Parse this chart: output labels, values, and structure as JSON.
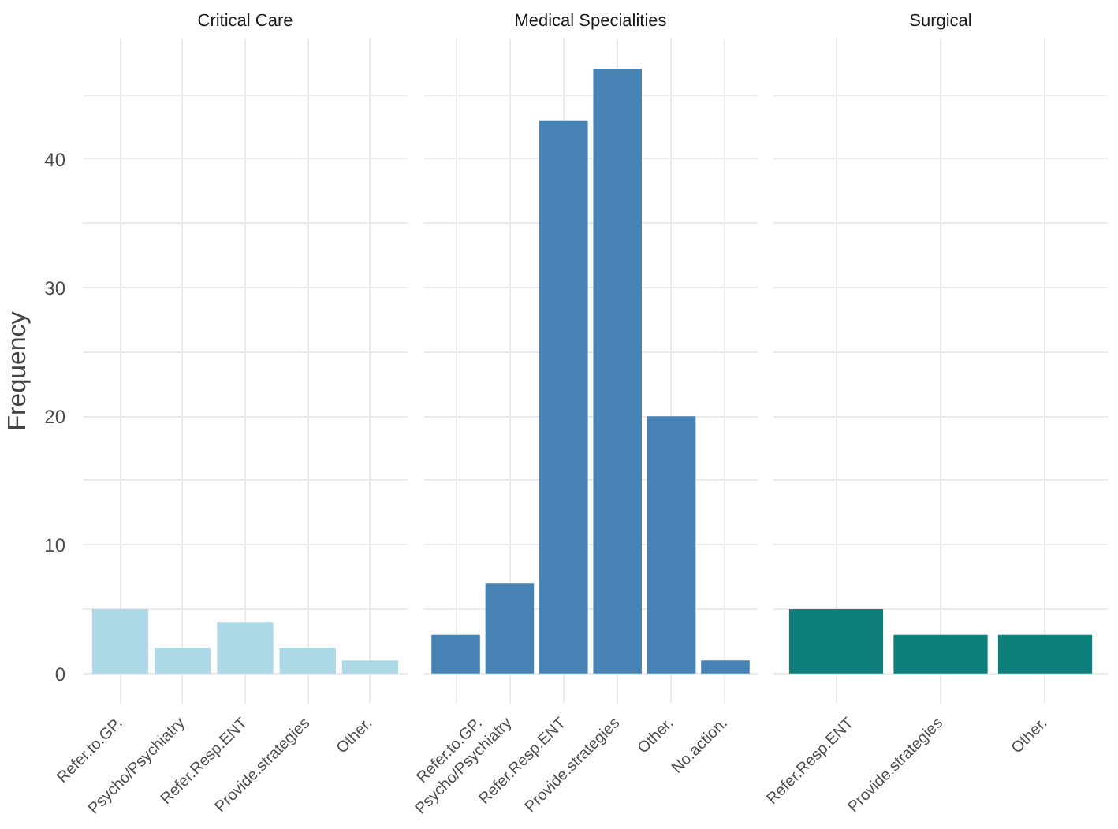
{
  "chart_data": [
    {
      "type": "bar",
      "title": "Critical Care",
      "ylabel": "Frequency",
      "categories": [
        "Refer.to.GP.",
        "Psycho/Psychiatry",
        "Refer.Resp.ENT",
        "Provide.strategies",
        "Other."
      ],
      "values": [
        5,
        2,
        4,
        2,
        1
      ],
      "color": "#add8e6",
      "ylim": [
        -2.35,
        49.35
      ],
      "yticks": [
        0,
        {
          "value": 5,
          "label": null
        },
        10,
        {
          "value": 15,
          "label": null
        },
        20,
        {
          "value": 25,
          "label": null
        },
        30,
        {
          "value": 35,
          "label": null
        },
        40,
        {
          "value": 45,
          "label": null
        }
      ],
      "grid": true
    },
    {
      "type": "bar",
      "title": "Medical Specialities",
      "categories": [
        "Refer.to.GP.",
        "Psycho/Psychiatry",
        "Refer.Resp.ENT",
        "Provide.strategies",
        "Other.",
        "No.action."
      ],
      "values": [
        3,
        7,
        43,
        47,
        20,
        1
      ],
      "color": "#4682b4",
      "ylim": [
        -2.35,
        49.35
      ],
      "yticks": [
        0,
        {
          "value": 5,
          "label": null
        },
        10,
        {
          "value": 15,
          "label": null
        },
        20,
        {
          "value": 25,
          "label": null
        },
        30,
        {
          "value": 35,
          "label": null
        },
        40,
        {
          "value": 45,
          "label": null
        }
      ],
      "grid": true,
      "tick_labels": "x"
    },
    {
      "type": "bar",
      "title": "Surgical",
      "categories": [
        "Refer.Resp.ENT",
        "Provide.strategies",
        "Other."
      ],
      "values": [
        5,
        3,
        3
      ],
      "color": "#0e7f7a",
      "ylim": [
        -2.35,
        49.35
      ],
      "yticks": [
        0,
        {
          "value": 5,
          "label": null
        },
        10,
        {
          "value": 15,
          "label": null
        },
        20,
        {
          "value": 25,
          "label": null
        },
        30,
        {
          "value": 35,
          "label": null
        },
        40,
        {
          "value": 45,
          "label": null
        }
      ],
      "grid": true,
      "tick_labels": "x"
    }
  ]
}
